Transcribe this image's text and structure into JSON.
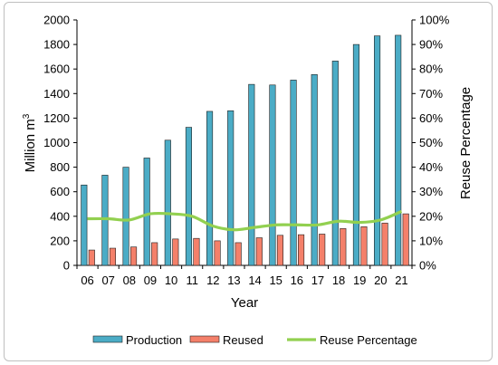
{
  "chart_data": {
    "type": "bar",
    "categories": [
      "06",
      "07",
      "08",
      "09",
      "10",
      "11",
      "12",
      "13",
      "14",
      "15",
      "16",
      "17",
      "18",
      "19",
      "20",
      "21"
    ],
    "series": [
      {
        "name": "Production",
        "kind": "bar",
        "axis": "left",
        "color": "#4bacc6",
        "values": [
          655,
          735,
          800,
          875,
          1020,
          1125,
          1255,
          1260,
          1475,
          1470,
          1510,
          1555,
          1665,
          1800,
          1870,
          1875
        ]
      },
      {
        "name": "Reused",
        "kind": "bar",
        "axis": "left",
        "color": "#f4806a",
        "values": [
          125,
          140,
          150,
          185,
          215,
          220,
          200,
          185,
          225,
          245,
          250,
          255,
          300,
          315,
          345,
          420
        ]
      },
      {
        "name": "Reuse Percentage",
        "kind": "line",
        "axis": "right",
        "color": "#92d050",
        "values": [
          0.19,
          0.19,
          0.185,
          0.21,
          0.21,
          0.2,
          0.16,
          0.145,
          0.155,
          0.165,
          0.165,
          0.165,
          0.18,
          0.175,
          0.185,
          0.22
        ]
      }
    ],
    "xlabel": "Year",
    "ylabel_main": "Million m",
    "ylabel_sup": "3",
    "y2label": "Reuse Percentage",
    "ylim": [
      0,
      2000
    ],
    "yticks": [
      0,
      200,
      400,
      600,
      800,
      1000,
      1200,
      1400,
      1600,
      1800,
      2000
    ],
    "y2lim": [
      0,
      1
    ],
    "y2ticks": [
      "0%",
      "10%",
      "20%",
      "30%",
      "40%",
      "50%",
      "60%",
      "70%",
      "80%",
      "90%",
      "100%"
    ],
    "grid": false,
    "legend_position": "bottom"
  }
}
